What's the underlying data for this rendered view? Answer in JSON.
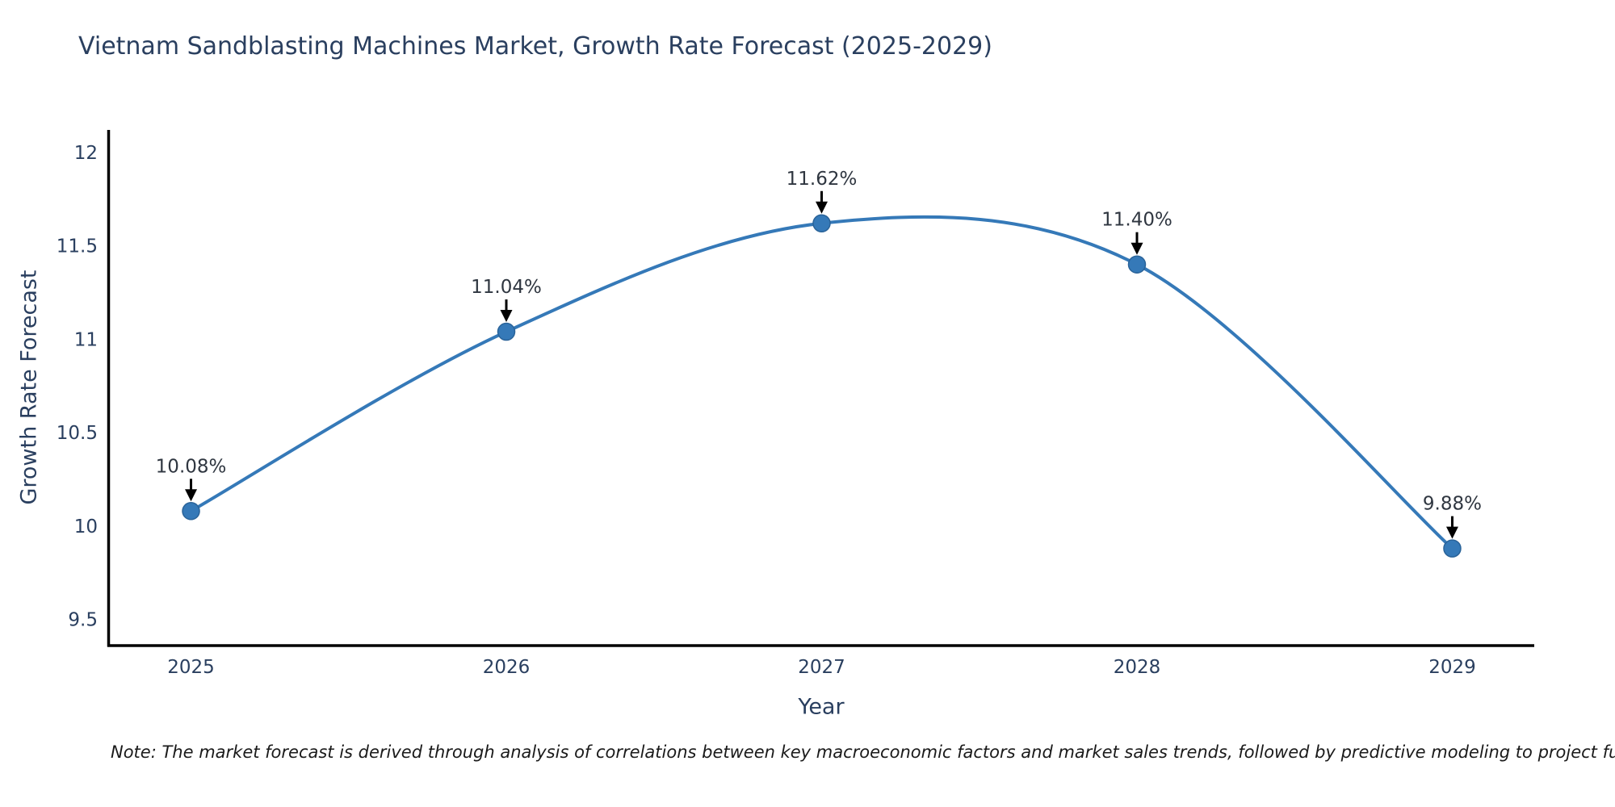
{
  "note": "Note: The market forecast is derived through analysis of correlations between key macroeconomic factors and market sales trends, followed by predictive modeling to project future sal",
  "colors": {
    "line": "#3579b8",
    "marker_fill": "#3579b8",
    "marker_edge": "#2a6399",
    "axis": "#000000",
    "title_text": "#2a3f5f",
    "tick_text": "#2a3f5f",
    "annotation_text": "#2f3640",
    "arrow": "#000000",
    "background": "#ffffff"
  },
  "chart_data": {
    "type": "line",
    "title": "Vietnam Sandblasting Machines Market, Growth Rate Forecast (2025-2029)",
    "xlabel": "Year",
    "ylabel": "Growth Rate Forecast",
    "x": [
      2025,
      2026,
      2027,
      2028,
      2029
    ],
    "values": [
      10.08,
      11.04,
      11.62,
      11.4,
      9.88
    ],
    "point_labels": [
      "10.08%",
      "11.04%",
      "11.62%",
      "11.40%",
      "9.88%"
    ],
    "xticks": [
      2025,
      2026,
      2027,
      2028,
      2029
    ],
    "xtick_labels": [
      "2025",
      "2026",
      "2027",
      "2028",
      "2029"
    ],
    "yticks": [
      9.5,
      10,
      10.5,
      11,
      11.5,
      12
    ],
    "ytick_labels": [
      "9.5",
      "10",
      "10.5",
      "11",
      "11.5",
      "12"
    ],
    "xlim": [
      2024.74,
      2029.26
    ],
    "ylim": [
      9.36,
      12.12
    ],
    "line_shape": "spline",
    "grid": false,
    "markers": true,
    "annotations_have_arrows": true,
    "legend": "none"
  }
}
